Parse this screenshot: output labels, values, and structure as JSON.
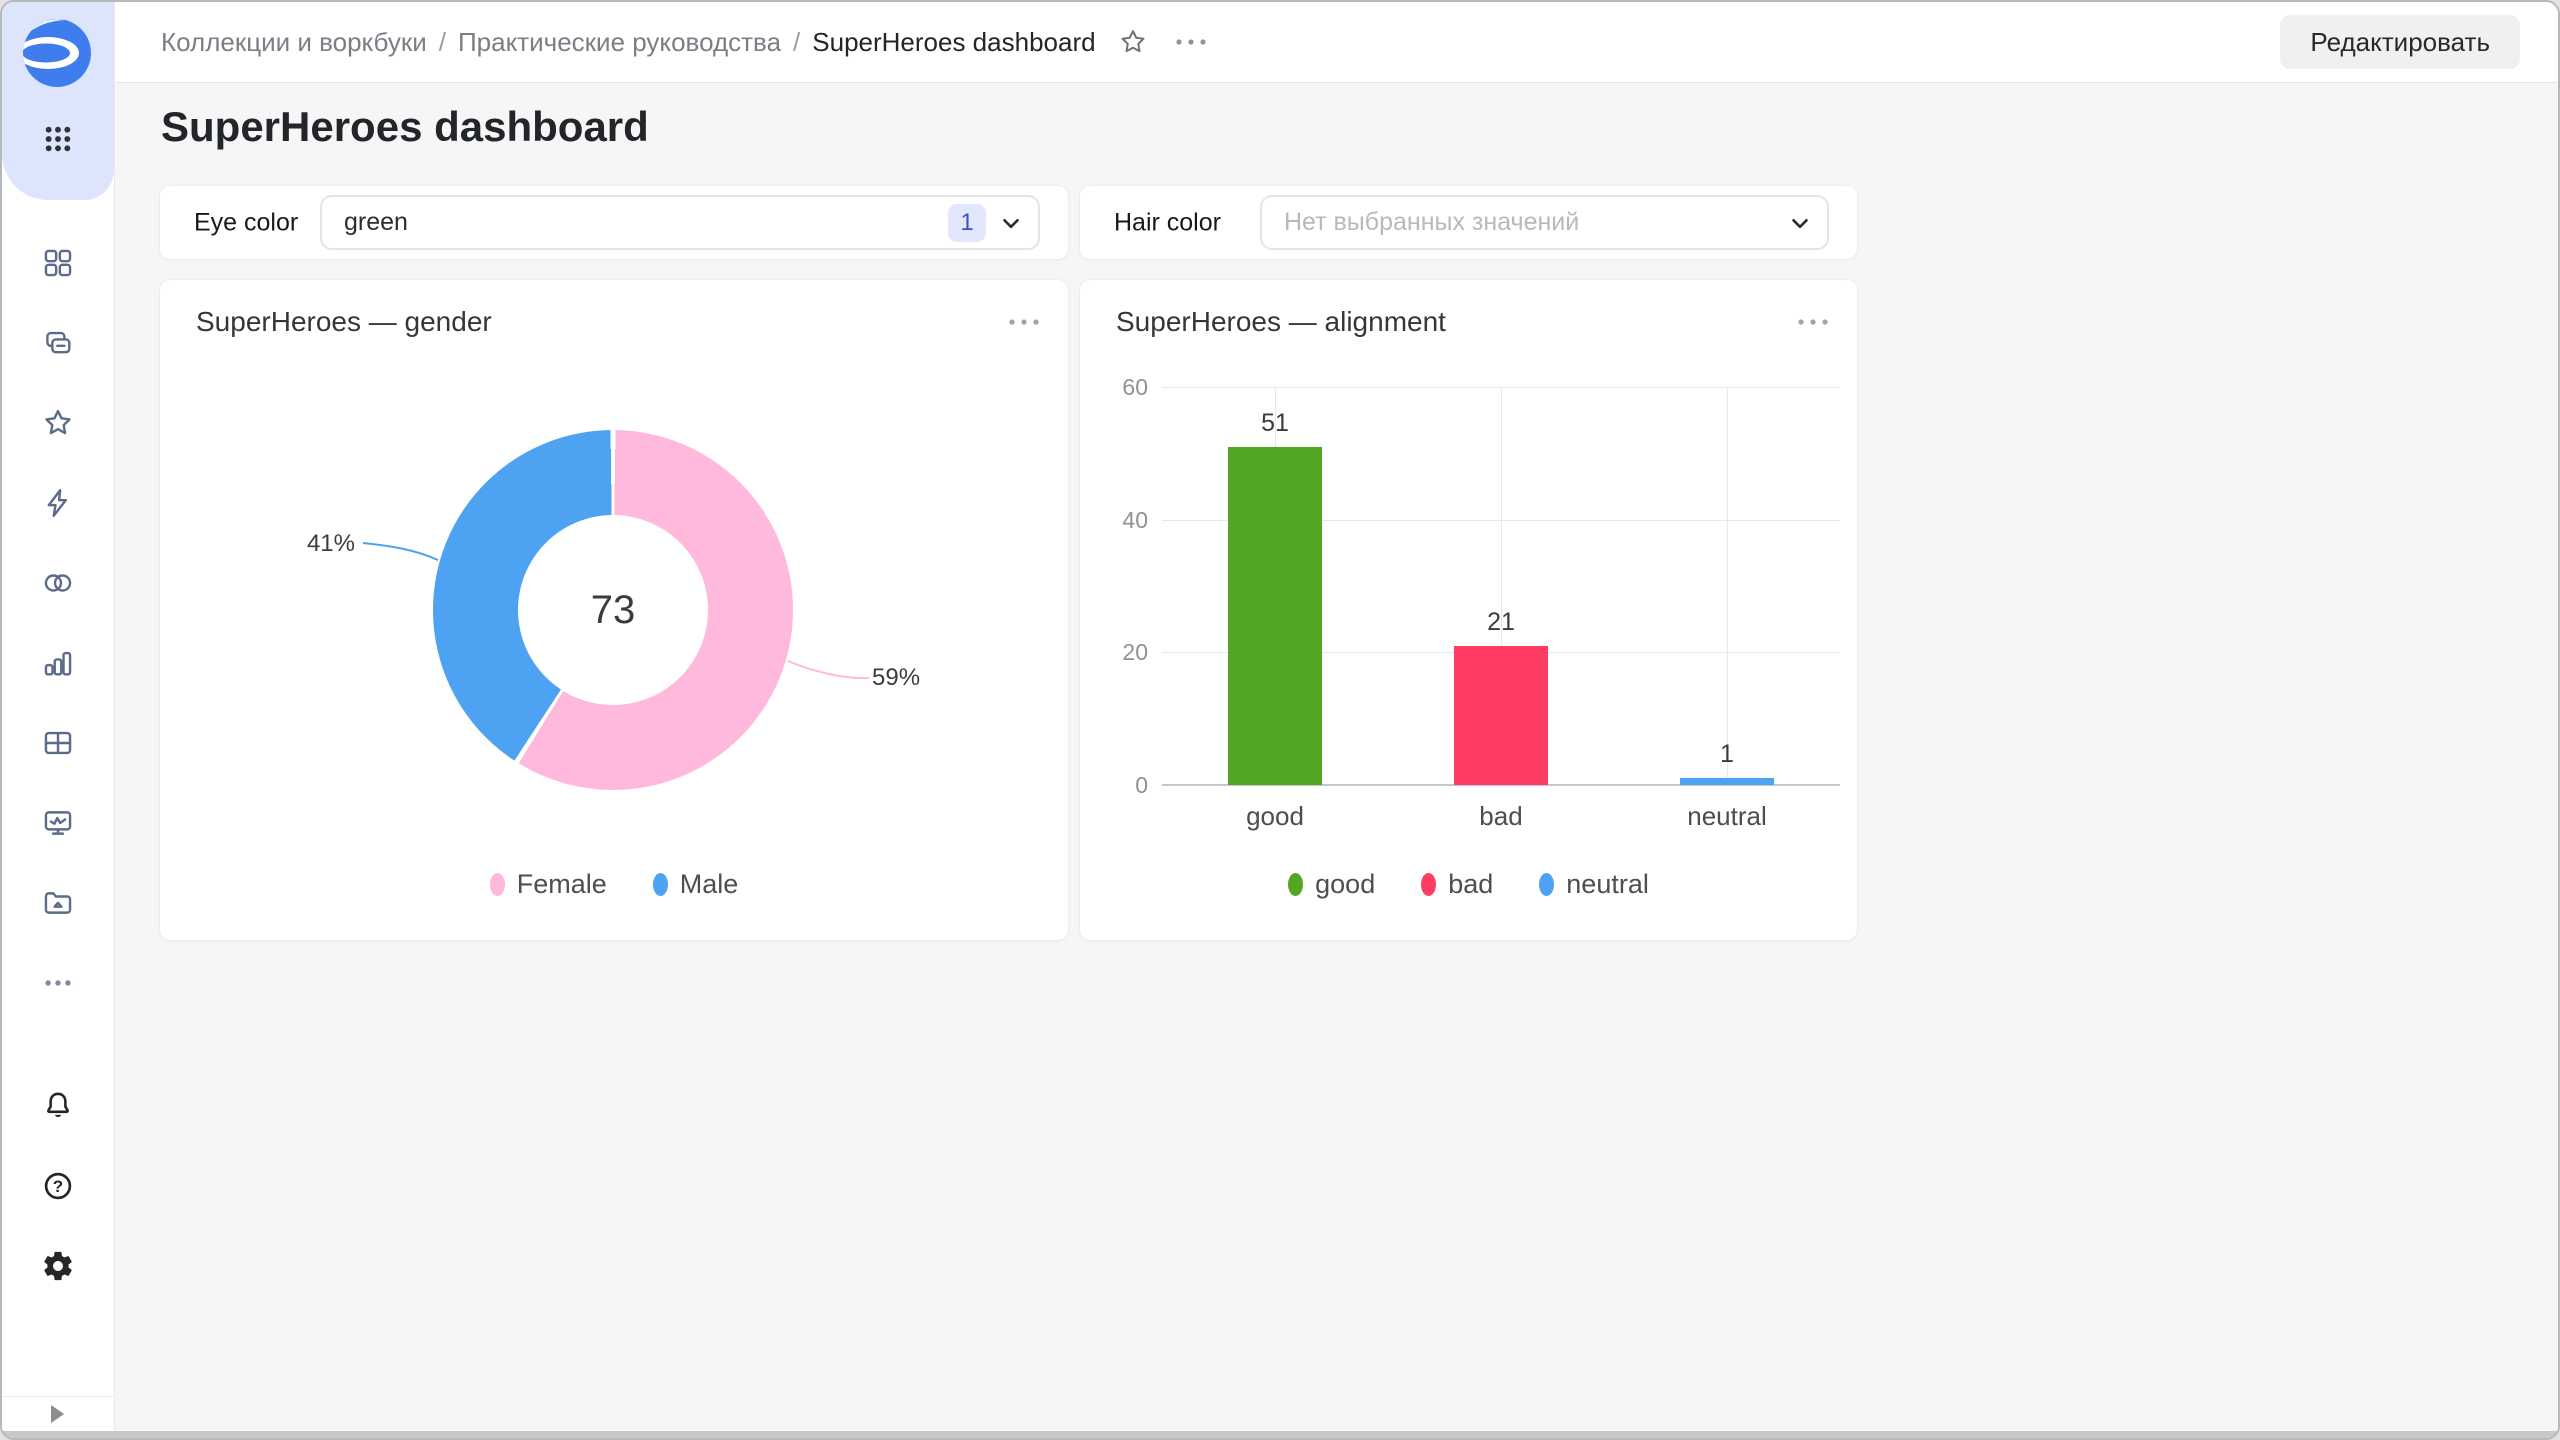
{
  "header": {
    "breadcrumbs": [
      "Коллекции и воркбуки",
      "Практические руководства",
      "SuperHeroes dashboard"
    ],
    "separator": "/",
    "edit_button": "Редактировать"
  },
  "page": {
    "title": "SuperHeroes dashboard"
  },
  "filters": [
    {
      "label": "Eye color",
      "value": "green",
      "selected_count": "1"
    },
    {
      "label": "Hair color",
      "placeholder": "Нет выбранных значений"
    }
  ],
  "sidebar": {
    "brand_icon": "datalens-logo",
    "nav_icons": [
      "apps-grid",
      "collections-grid",
      "workbooks-copies",
      "favorites-star",
      "connections-bolt",
      "datasets-circles",
      "charts-bars",
      "dashboards-table",
      "monitoring-screen",
      "storage-folder",
      "more-ellipsis"
    ],
    "footer_icons": [
      "notifications-bell",
      "help-question",
      "settings-gear"
    ],
    "expand_icon": "expand-arrow"
  },
  "colors": {
    "accent_blue": "#4DA2F1",
    "pink": "#FFB9DD",
    "green": "#52A622",
    "red": "#FF3D64",
    "sidebar_brand_bg": "#dce5fb",
    "canvas_bg": "#f6f6f7",
    "badge_bg": "#e2e7fd",
    "badge_text": "#3b51c4"
  },
  "chart_data": [
    {
      "type": "pie",
      "donut": true,
      "title": "SuperHeroes — gender",
      "center_total": "73",
      "legend_position": "bottom",
      "series": [
        {
          "name": "Female",
          "percent": 59,
          "percent_label": "59%",
          "color": "#FFB9DD"
        },
        {
          "name": "Male",
          "percent": 41,
          "percent_label": "41%",
          "color": "#4DA2F1"
        }
      ]
    },
    {
      "type": "bar",
      "title": "SuperHeroes — alignment",
      "categories": [
        "good",
        "bad",
        "neutral"
      ],
      "series": [
        {
          "name": "good",
          "value": 51,
          "color": "#52A622"
        },
        {
          "name": "bad",
          "value": 21,
          "color": "#FF3D64"
        },
        {
          "name": "neutral",
          "value": 1,
          "color": "#4DA2F1"
        }
      ],
      "ylim": [
        0,
        60
      ],
      "yticks": [
        0,
        20,
        40,
        60
      ],
      "grid": true,
      "legend_position": "bottom"
    }
  ]
}
